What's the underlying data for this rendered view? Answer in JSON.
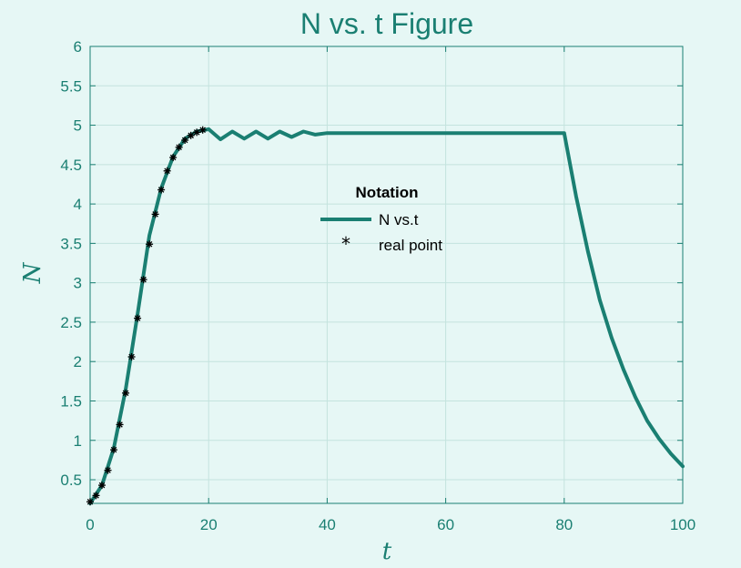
{
  "chart_data": {
    "type": "line",
    "title": "N vs. t Figure",
    "xlabel": "t",
    "ylabel": "N",
    "xlim": [
      0,
      100
    ],
    "ylim": [
      0.2,
      6
    ],
    "xticks": [
      "0",
      "20",
      "40",
      "60",
      "80",
      "100"
    ],
    "yticks": [
      "0.5",
      "1",
      "1.5",
      "2",
      "2.5",
      "3",
      "3.5",
      "4",
      "4.5",
      "5",
      "5.5",
      "6"
    ],
    "grid": true,
    "legend": {
      "title": "Notation",
      "placement": "center",
      "entries": [
        "N vs.t",
        "real point"
      ]
    },
    "colors": {
      "line": "#1a7f72",
      "points": "#000000",
      "axes": "#1a7f72",
      "background": "#e6f7f5"
    },
    "series": [
      {
        "name": "N vs.t",
        "kind": "line",
        "x": [
          0,
          2,
          4,
          6,
          8,
          10,
          12,
          14,
          16,
          18,
          20,
          22,
          24,
          26,
          28,
          30,
          32,
          34,
          36,
          38,
          40,
          50,
          60,
          70,
          80,
          82,
          84,
          86,
          88,
          90,
          92,
          94,
          96,
          98,
          100
        ],
        "y": [
          0.2,
          0.43,
          0.9,
          1.65,
          2.6,
          3.6,
          4.2,
          4.6,
          4.83,
          4.92,
          4.95,
          4.82,
          4.92,
          4.83,
          4.92,
          4.83,
          4.92,
          4.85,
          4.92,
          4.88,
          4.9,
          4.9,
          4.9,
          4.9,
          4.9,
          4.1,
          3.4,
          2.78,
          2.3,
          1.9,
          1.55,
          1.25,
          1.02,
          0.83,
          0.67
        ]
      },
      {
        "name": "real point",
        "kind": "scatter",
        "x": [
          0,
          1,
          2,
          3,
          4,
          5,
          6,
          7,
          8,
          9,
          10,
          11,
          12,
          13,
          14,
          15,
          16,
          17,
          18,
          19
        ],
        "y": [
          0.22,
          0.3,
          0.43,
          0.62,
          0.88,
          1.2,
          1.6,
          2.06,
          2.55,
          3.04,
          3.49,
          3.87,
          4.18,
          4.42,
          4.59,
          4.72,
          4.81,
          4.87,
          4.91,
          4.94
        ]
      }
    ]
  }
}
